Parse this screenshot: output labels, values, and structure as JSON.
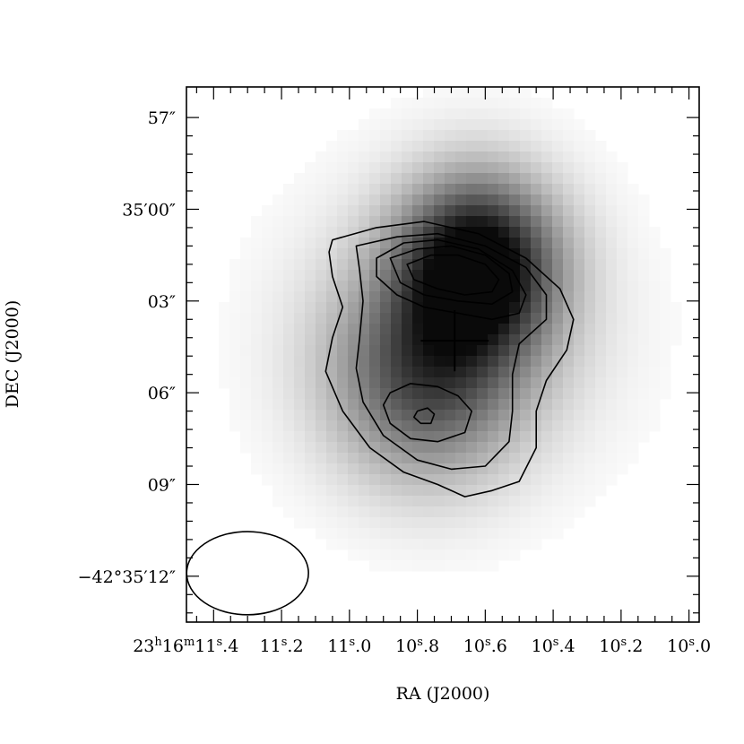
{
  "chart_data": {
    "type": "heatmap",
    "title": "",
    "xlabel": "RA (J2000)",
    "ylabel": "DEC (J2000)",
    "x_axis": {
      "unit": "seconds of RA (23h16m)",
      "range": [
        11.48,
        9.97
      ],
      "reversed": true,
      "major_ticks": [
        {
          "value": 11.4,
          "label_main": "23",
          "sup1": "h",
          "mid": "16",
          "sup2": "m",
          "tail": "11",
          "sup3": "s",
          "frac": ".4"
        },
        {
          "value": 11.2,
          "label_main": "",
          "sup1": "",
          "mid": "",
          "sup2": "",
          "tail": "11",
          "sup3": "s",
          "frac": ".2"
        },
        {
          "value": 11.0,
          "label_main": "",
          "sup1": "",
          "mid": "",
          "sup2": "",
          "tail": "11",
          "sup3": "s",
          "frac": ".0"
        },
        {
          "value": 10.8,
          "label_main": "",
          "sup1": "",
          "mid": "",
          "sup2": "",
          "tail": "10",
          "sup3": "s",
          "frac": ".8"
        },
        {
          "value": 10.6,
          "label_main": "",
          "sup1": "",
          "mid": "",
          "sup2": "",
          "tail": "10",
          "sup3": "s",
          "frac": ".6"
        },
        {
          "value": 10.4,
          "label_main": "",
          "sup1": "",
          "mid": "",
          "sup2": "",
          "tail": "10",
          "sup3": "s",
          "frac": ".4"
        },
        {
          "value": 10.2,
          "label_main": "",
          "sup1": "",
          "mid": "",
          "sup2": "",
          "tail": "10",
          "sup3": "s",
          "frac": ".2"
        },
        {
          "value": 10.0,
          "label_main": "",
          "sup1": "",
          "mid": "",
          "sup2": "",
          "tail": "10",
          "sup3": "s",
          "frac": ".0"
        }
      ],
      "minor_step": 0.05
    },
    "y_axis": {
      "unit": "arcsec offset within -42°35'",
      "range": [
        56,
        13.5
      ],
      "major_ticks": [
        {
          "value": 57,
          "label": "57″"
        },
        {
          "value": 60,
          "label": "35′00″"
        },
        {
          "value": 63,
          "label": "03″"
        },
        {
          "value": 66,
          "label": "06″"
        },
        {
          "value": 69,
          "label": "09″"
        },
        {
          "value": 72,
          "label": "−42°35′12″"
        }
      ],
      "minor_step": 0.6
    },
    "image": {
      "colormap": "gray_inverted",
      "components": [
        {
          "ra_s": 10.62,
          "dec_s": 61.8,
          "sigma_ra_s": 0.16,
          "sigma_dec_s": 2.0,
          "amp": 1.0
        },
        {
          "ra_s": 10.78,
          "dec_s": 65.6,
          "sigma_ra_s": 0.19,
          "sigma_dec_s": 2.3,
          "amp": 0.55
        },
        {
          "ra_s": 10.7,
          "dec_s": 64.0,
          "sigma_ra_s": 0.3,
          "sigma_dec_s": 3.2,
          "amp": 0.25
        }
      ]
    },
    "contours": [
      {
        "level": 1,
        "points": [
          [
            11.05,
            61.0
          ],
          [
            10.92,
            60.6
          ],
          [
            10.78,
            60.4
          ],
          [
            10.62,
            60.8
          ],
          [
            10.48,
            61.6
          ],
          [
            10.38,
            62.6
          ],
          [
            10.34,
            63.6
          ],
          [
            10.36,
            64.6
          ],
          [
            10.42,
            65.6
          ],
          [
            10.45,
            66.6
          ],
          [
            10.45,
            67.8
          ],
          [
            10.5,
            68.9
          ],
          [
            10.58,
            69.2
          ],
          [
            10.66,
            69.4
          ],
          [
            10.74,
            69.0
          ],
          [
            10.84,
            68.6
          ],
          [
            10.94,
            67.8
          ],
          [
            11.02,
            66.6
          ],
          [
            11.07,
            65.3
          ],
          [
            11.05,
            64.2
          ],
          [
            11.02,
            63.2
          ],
          [
            11.05,
            62.2
          ],
          [
            11.06,
            61.4
          ],
          [
            11.05,
            61.0
          ]
        ]
      },
      {
        "level": 2,
        "points": [
          [
            10.98,
            61.2
          ],
          [
            10.86,
            60.9
          ],
          [
            10.74,
            60.8
          ],
          [
            10.6,
            61.2
          ],
          [
            10.48,
            61.9
          ],
          [
            10.42,
            62.8
          ],
          [
            10.42,
            63.6
          ],
          [
            10.5,
            64.4
          ],
          [
            10.52,
            65.4
          ],
          [
            10.52,
            66.6
          ],
          [
            10.53,
            67.6
          ],
          [
            10.6,
            68.4
          ],
          [
            10.7,
            68.5
          ],
          [
            10.8,
            68.2
          ],
          [
            10.9,
            67.4
          ],
          [
            10.96,
            66.3
          ],
          [
            10.98,
            65.2
          ],
          [
            10.97,
            64.2
          ],
          [
            10.96,
            63.0
          ],
          [
            10.97,
            62.0
          ],
          [
            10.98,
            61.2
          ]
        ]
      },
      {
        "level": 3,
        "points": [
          [
            10.92,
            61.6
          ],
          [
            10.84,
            61.1
          ],
          [
            10.74,
            61.0
          ],
          [
            10.62,
            61.3
          ],
          [
            10.52,
            62.0
          ],
          [
            10.48,
            62.8
          ],
          [
            10.5,
            63.4
          ],
          [
            10.58,
            63.6
          ],
          [
            10.68,
            63.4
          ],
          [
            10.78,
            63.2
          ],
          [
            10.86,
            62.8
          ],
          [
            10.92,
            62.2
          ],
          [
            10.92,
            61.6
          ]
        ]
      },
      {
        "level": 4,
        "points": [
          [
            10.88,
            61.6
          ],
          [
            10.8,
            61.3
          ],
          [
            10.7,
            61.2
          ],
          [
            10.6,
            61.5
          ],
          [
            10.53,
            62.1
          ],
          [
            10.52,
            62.7
          ],
          [
            10.58,
            63.1
          ],
          [
            10.68,
            63.0
          ],
          [
            10.78,
            62.8
          ],
          [
            10.85,
            62.4
          ],
          [
            10.88,
            61.6
          ]
        ]
      },
      {
        "level": 5,
        "points": [
          [
            10.83,
            61.8
          ],
          [
            10.76,
            61.5
          ],
          [
            10.68,
            61.5
          ],
          [
            10.6,
            61.8
          ],
          [
            10.56,
            62.3
          ],
          [
            10.58,
            62.7
          ],
          [
            10.66,
            62.8
          ],
          [
            10.74,
            62.6
          ],
          [
            10.81,
            62.3
          ],
          [
            10.83,
            61.8
          ]
        ]
      },
      {
        "level": 3,
        "points": [
          [
            10.88,
            66.0
          ],
          [
            10.82,
            65.7
          ],
          [
            10.74,
            65.8
          ],
          [
            10.68,
            66.1
          ],
          [
            10.64,
            66.6
          ],
          [
            10.66,
            67.3
          ],
          [
            10.74,
            67.6
          ],
          [
            10.82,
            67.5
          ],
          [
            10.88,
            67.0
          ],
          [
            10.9,
            66.4
          ],
          [
            10.88,
            66.0
          ]
        ]
      },
      {
        "level": 5,
        "points": [
          [
            10.8,
            66.6
          ],
          [
            10.77,
            66.5
          ],
          [
            10.75,
            66.7
          ],
          [
            10.76,
            67.0
          ],
          [
            10.79,
            67.0
          ],
          [
            10.81,
            66.8
          ],
          [
            10.8,
            66.6
          ]
        ]
      }
    ],
    "center_marker": {
      "ra_s": 10.69,
      "dec_s": 64.3,
      "half_ra_s": 0.1,
      "half_dec_s": 1.0
    },
    "beam": {
      "ra_s": 11.3,
      "dec_s": 71.9,
      "major_arcsec": 2.4,
      "minor_arcsec": 2.0,
      "pa_deg": 0
    }
  }
}
